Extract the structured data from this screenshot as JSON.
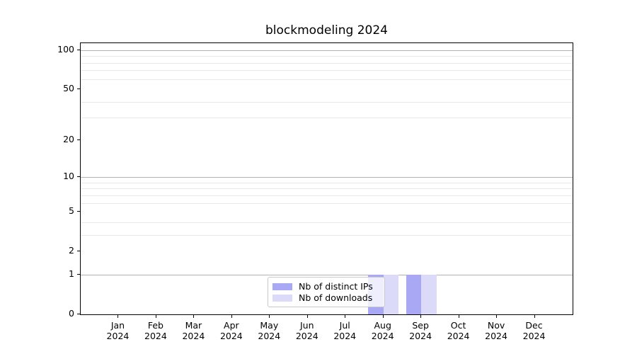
{
  "chart_data": {
    "type": "bar",
    "title": "blockmodeling 2024",
    "xlabel": "",
    "ylabel": "",
    "yscale": "log1p",
    "ylim": [
      0,
      113
    ],
    "yticks": [
      100,
      50,
      20,
      10,
      5,
      2,
      1,
      0
    ],
    "grid_major": [
      100,
      10,
      1
    ],
    "grid_minor": [
      90,
      80,
      70,
      60,
      40,
      30,
      9,
      8,
      7,
      6,
      4,
      3
    ],
    "grid_on": true,
    "categories": [
      {
        "month": "Jan",
        "year": "2024"
      },
      {
        "month": "Feb",
        "year": "2024"
      },
      {
        "month": "Mar",
        "year": "2024"
      },
      {
        "month": "Apr",
        "year": "2024"
      },
      {
        "month": "May",
        "year": "2024"
      },
      {
        "month": "Jun",
        "year": "2024"
      },
      {
        "month": "Jul",
        "year": "2024"
      },
      {
        "month": "Aug",
        "year": "2024"
      },
      {
        "month": "Sep",
        "year": "2024"
      },
      {
        "month": "Oct",
        "year": "2024"
      },
      {
        "month": "Nov",
        "year": "2024"
      },
      {
        "month": "Dec",
        "year": "2024"
      }
    ],
    "series": [
      {
        "name": "Nb of distinct IPs",
        "color": "#a8a8f4",
        "values": [
          0,
          0,
          0,
          0,
          0,
          0,
          0,
          1,
          1,
          0,
          0,
          0
        ]
      },
      {
        "name": "Nb of downloads",
        "color": "#dbdbf9",
        "values": [
          0,
          0,
          0,
          0,
          0,
          0,
          0,
          1,
          1,
          0,
          0,
          0
        ]
      }
    ],
    "legend_position": "lower center",
    "colors": {
      "grid_major": "#b2b2b2",
      "grid_minor": "#e8e8e8",
      "spine": "#000000",
      "background": "#ffffff"
    }
  }
}
